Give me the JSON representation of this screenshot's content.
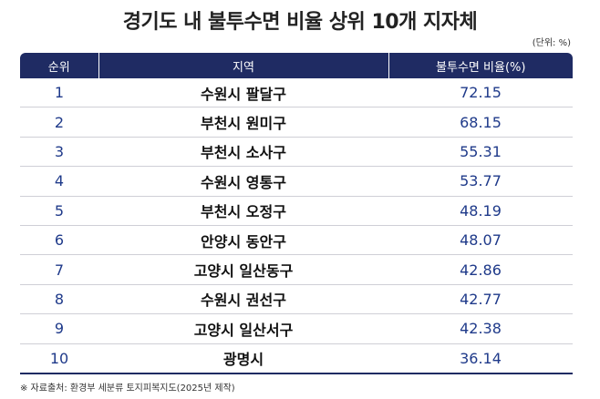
{
  "header": {
    "title": "경기도 내 불투수면 비율 상위 10개 지자체",
    "unit": "(단위: %)"
  },
  "table": {
    "columns": [
      "순위",
      "지역",
      "불투수면 비율(%)"
    ],
    "rows": [
      [
        1,
        "수원시 팔달구",
        72.15
      ],
      [
        2,
        "부천시 원미구",
        68.15
      ],
      [
        3,
        "부천시 소사구",
        55.31
      ],
      [
        4,
        "수원시 영통구",
        53.77
      ],
      [
        5,
        "부천시 오정구",
        48.19
      ],
      [
        6,
        "안양시 동안구",
        48.07
      ],
      [
        7,
        "고양시 일산동구",
        42.86
      ],
      [
        8,
        "수원시 권선구",
        42.77
      ],
      [
        9,
        "고양시 일산서구",
        42.38
      ],
      [
        10,
        "광명시",
        36.14
      ]
    ]
  },
  "footer": {
    "source": "※ 자료출처: 환경부 세분류 토지피복지도(2025년 제작)"
  }
}
